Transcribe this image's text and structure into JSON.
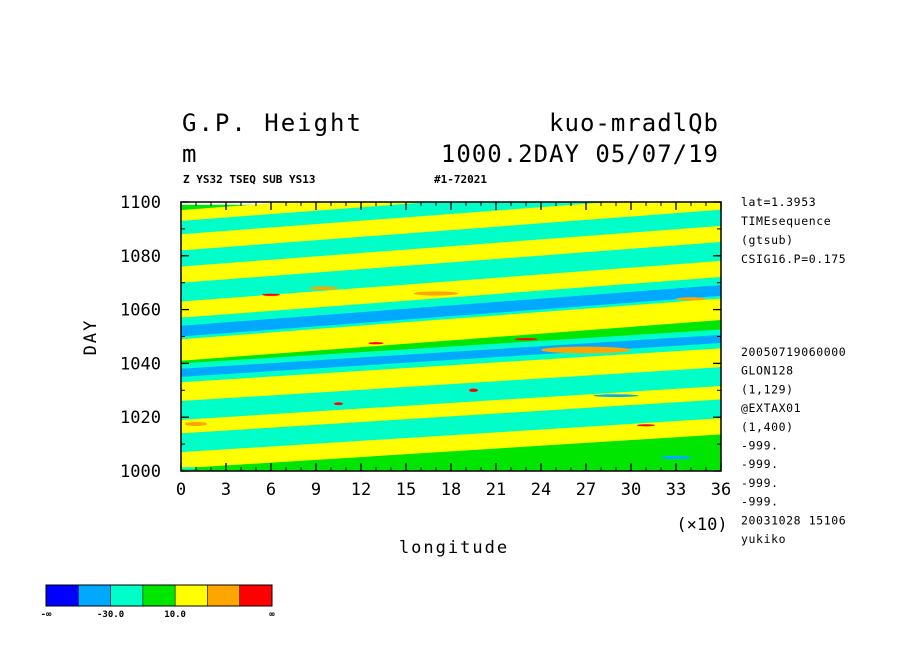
{
  "header": {
    "title_left": "G.P. Height",
    "title_right": "kuo-mradlQb",
    "unit": "m",
    "subtitle_right": "1000.2DAY 05/07/19",
    "info_left": "Z YS32 TSEQ SUB YS13",
    "info_right": "#1-72021"
  },
  "side_info": {
    "top": [
      "lat=1.3953",
      "TIMEsequence",
      "(gtsub)",
      "CSIG16.P=0.175"
    ],
    "bottom": [
      "20050719060000",
      "GLON128",
      "(1,129)",
      "@EXTAX01",
      "(1,400)",
      "-999.",
      "-999.",
      "-999.",
      "-999.",
      "20031028  15106",
      "yukiko"
    ]
  },
  "chart_data": {
    "type": "heatmap",
    "xlabel": "longitude",
    "x_multiplier": "(×10)",
    "ylabel": "DAY",
    "xlim": [
      0,
      36
    ],
    "ylim": [
      1000,
      1100
    ],
    "x_ticks": [
      "0",
      "3",
      "6",
      "9",
      "12",
      "15",
      "18",
      "21",
      "24",
      "27",
      "30",
      "33",
      "36"
    ],
    "y_ticks": [
      "1000",
      "1020",
      "1040",
      "1060",
      "1080",
      "1100"
    ],
    "colorbar": {
      "colors": [
        "#0000ff",
        "#00a8ff",
        "#00ffc8",
        "#00e600",
        "#ffff00",
        "#ffa500",
        "#ff0000"
      ],
      "labels": [
        "-∞",
        "-30.0",
        "10.0",
        "∞"
      ]
    },
    "bands": [
      {
        "day_start": 1000,
        "day_end": 1099,
        "slope": 0.0,
        "level": 3
      },
      {
        "day_start": 1001,
        "day_end": 1011,
        "slope": 0.35,
        "level": 4
      },
      {
        "day_start": 1007,
        "day_end": 1014,
        "slope": 0.35,
        "level": 2
      },
      {
        "day_start": 1014,
        "day_end": 1021,
        "slope": 0.35,
        "level": 4
      },
      {
        "day_start": 1019,
        "day_end": 1027,
        "slope": 0.35,
        "level": 2
      },
      {
        "day_start": 1026,
        "day_end": 1035,
        "slope": 0.35,
        "level": 4
      },
      {
        "day_start": 1033,
        "day_end": 1040,
        "slope": 0.35,
        "level": 2
      },
      {
        "day_start": 1035,
        "day_end": 1038,
        "slope": 0.35,
        "level": 1
      },
      {
        "day_start": 1041,
        "day_end": 1052,
        "slope": 0.42,
        "level": 4
      },
      {
        "day_start": 1049,
        "day_end": 1058,
        "slope": 0.42,
        "level": 2
      },
      {
        "day_start": 1050,
        "day_end": 1054,
        "slope": 0.42,
        "level": 1
      },
      {
        "day_start": 1057,
        "day_end": 1064,
        "slope": 0.42,
        "level": 4
      },
      {
        "day_start": 1063,
        "day_end": 1072,
        "slope": 0.42,
        "level": 2
      },
      {
        "day_start": 1070,
        "day_end": 1078,
        "slope": 0.42,
        "level": 4
      },
      {
        "day_start": 1076,
        "day_end": 1083,
        "slope": 0.42,
        "level": 2
      },
      {
        "day_start": 1082,
        "day_end": 1089,
        "slope": 0.42,
        "level": 4
      },
      {
        "day_start": 1088,
        "day_end": 1094,
        "slope": 0.42,
        "level": 2
      },
      {
        "day_start": 1093,
        "day_end": 1097,
        "slope": 0.42,
        "level": 4
      }
    ],
    "patches": [
      {
        "lon": 27,
        "day": 1045,
        "lon_width": 6,
        "day_height": 2.5,
        "level": 5
      },
      {
        "lon": 17,
        "day": 1066,
        "lon_width": 3,
        "day_height": 1.5,
        "level": 5
      },
      {
        "lon": 9.5,
        "day": 1068,
        "lon_width": 2,
        "day_height": 1.2,
        "level": 5
      },
      {
        "lon": 34,
        "day": 1064,
        "lon_width": 2,
        "day_height": 1.2,
        "level": 5
      },
      {
        "lon": 6,
        "day": 1065.5,
        "lon_width": 1.2,
        "day_height": 0.8,
        "level": 6
      },
      {
        "lon": 19.5,
        "day": 1030,
        "lon_width": 0.6,
        "day_height": 1.2,
        "level": 6
      },
      {
        "lon": 23,
        "day": 1049,
        "lon_width": 1.5,
        "day_height": 0.8,
        "level": 6
      },
      {
        "lon": 13,
        "day": 1047.5,
        "lon_width": 1,
        "day_height": 0.8,
        "level": 6
      },
      {
        "lon": 10.5,
        "day": 1025,
        "lon_width": 0.6,
        "day_height": 1.0,
        "level": 6
      },
      {
        "lon": 31,
        "day": 1017,
        "lon_width": 1.2,
        "day_height": 0.8,
        "level": 6
      },
      {
        "lon": 1,
        "day": 1017.5,
        "lon_width": 1.5,
        "day_height": 1.5,
        "level": 5
      },
      {
        "lon": 0.5,
        "day": 1001,
        "lon_width": 1,
        "day_height": 1,
        "level": 2
      },
      {
        "lon": 33,
        "day": 1005,
        "lon_width": 2,
        "day_height": 1.2,
        "level": 1
      },
      {
        "lon": 29,
        "day": 1028,
        "lon_width": 3,
        "day_height": 1,
        "level": 1
      }
    ]
  }
}
